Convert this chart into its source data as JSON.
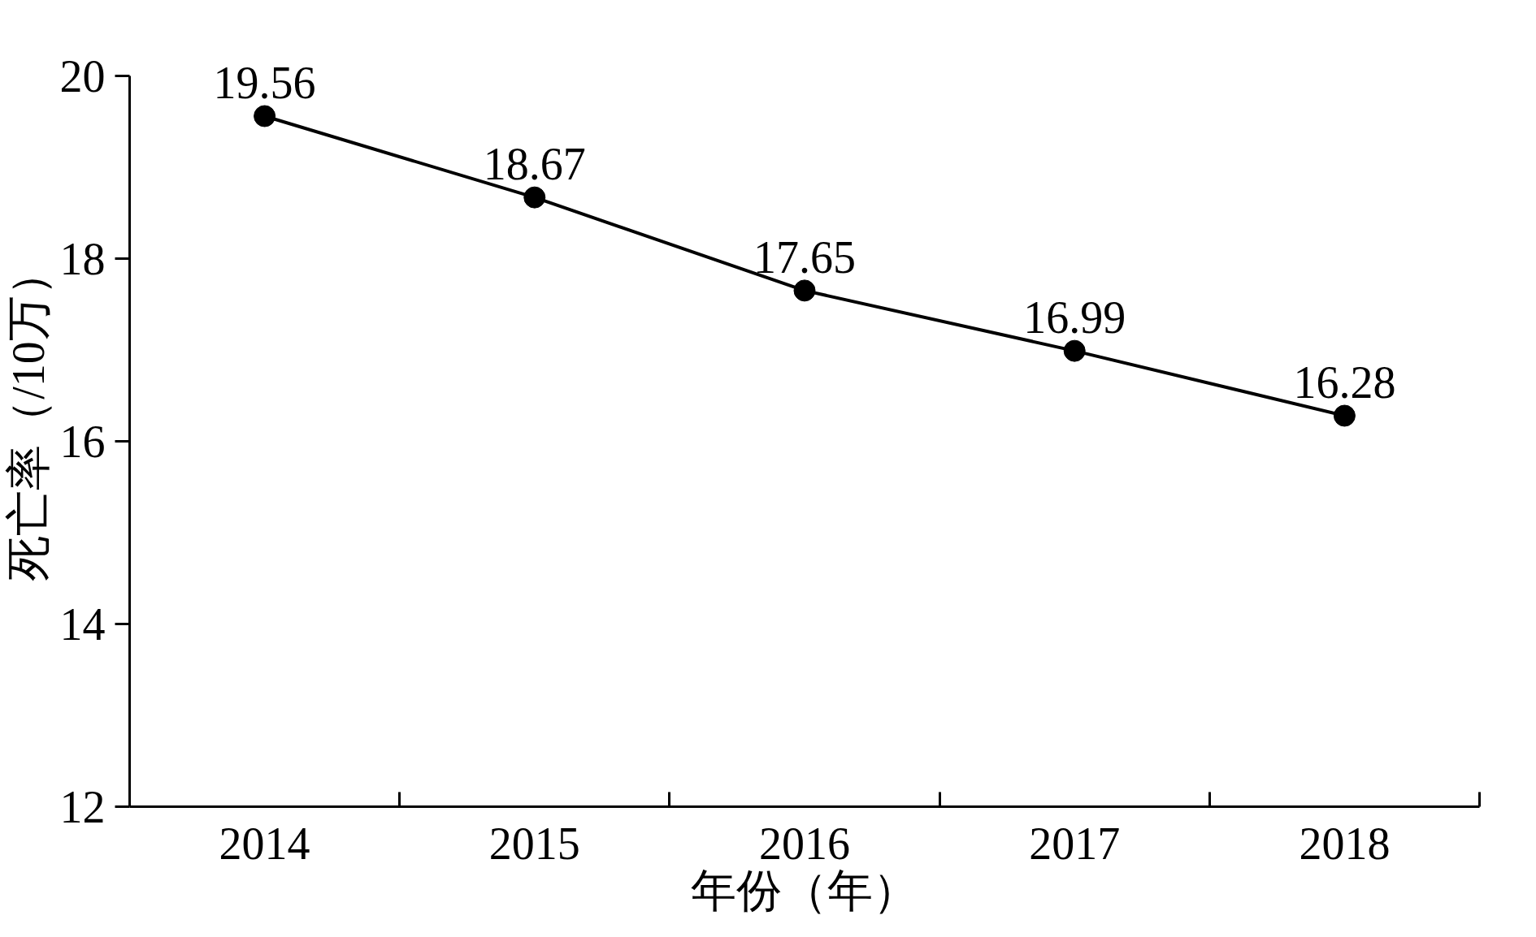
{
  "chart_data": {
    "type": "line",
    "xlabel": "年份（年）",
    "ylabel": "死亡率（/10万）",
    "categories": [
      "2014",
      "2015",
      "2016",
      "2017",
      "2018"
    ],
    "values": [
      19.56,
      18.67,
      17.65,
      16.99,
      16.28
    ],
    "color": "#000000",
    "marker": "circle",
    "line_style": "solid",
    "data_labels": true,
    "ylim": [
      12,
      20
    ],
    "yticks": [
      12,
      14,
      16,
      18,
      20
    ]
  }
}
